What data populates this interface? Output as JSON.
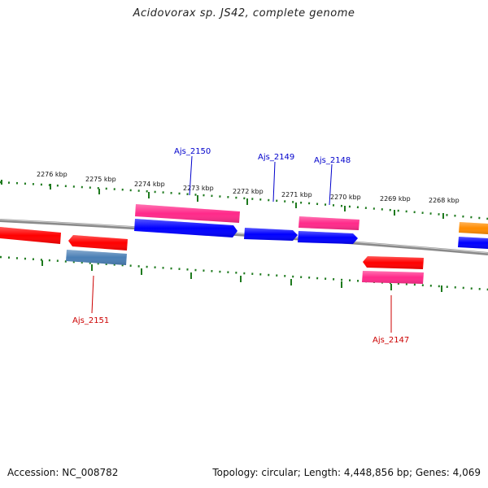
{
  "title": "Acidovorax sp. JS42, complete genome",
  "footer": {
    "accession": "Accession: NC_008782",
    "summary": "Topology: circular; Length: 4,448,856 bp; Genes: 4,069"
  },
  "colors": {
    "backbone": "#8a8a8a",
    "tick": "#1e7a1e",
    "label_forward": "#0000cc",
    "label_reverse": "#cc0000",
    "gene_red": "#ff0000",
    "gene_pink": "#ff2a8a",
    "gene_blue": "#0000ff",
    "gene_steel": "#4a7fb5",
    "gene_orange": "#ff8c00"
  },
  "scale_labels": [
    "2276 kbp",
    "2275 kbp",
    "2274 kbp",
    "2273 kbp",
    "2272 kbp",
    "2271 kbp",
    "2270 kbp",
    "2269 kbp",
    "2268 kbp"
  ],
  "gene_labels": [
    {
      "name": "Ajs_2150",
      "strand": "forward"
    },
    {
      "name": "Ajs_2149",
      "strand": "forward"
    },
    {
      "name": "Ajs_2148",
      "strand": "forward"
    },
    {
      "name": "Ajs_2151",
      "strand": "reverse"
    },
    {
      "name": "Ajs_2147",
      "strand": "reverse"
    }
  ]
}
